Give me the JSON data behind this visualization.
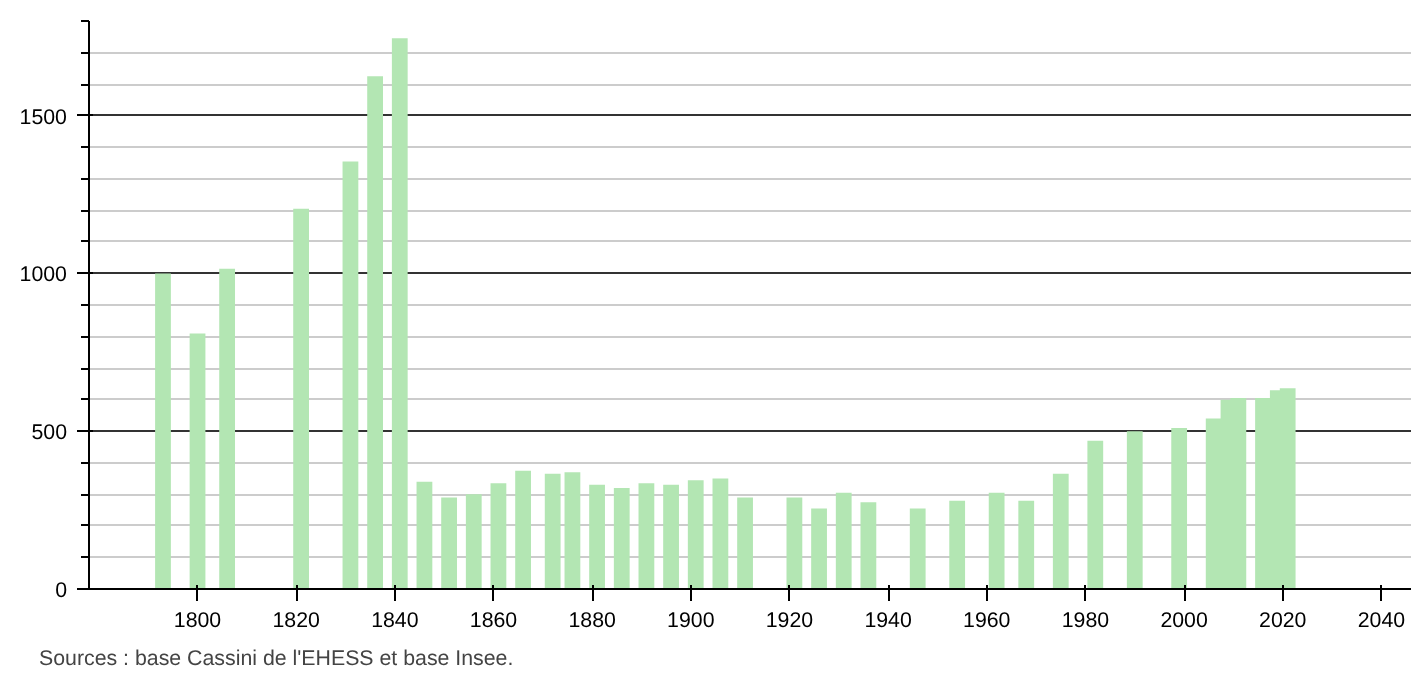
{
  "chart_data": {
    "type": "bar",
    "x": [
      1793,
      1800,
      1806,
      1821,
      1831,
      1836,
      1841,
      1846,
      1851,
      1856,
      1861,
      1866,
      1872,
      1876,
      1881,
      1886,
      1891,
      1896,
      1901,
      1906,
      1911,
      1921,
      1926,
      1931,
      1936,
      1946,
      1954,
      1962,
      1968,
      1975,
      1982,
      1990,
      1999,
      2006,
      2009,
      2011,
      2016,
      2019,
      2021
    ],
    "values": [
      1000,
      810,
      1015,
      1205,
      1355,
      1625,
      1745,
      340,
      290,
      300,
      335,
      375,
      365,
      370,
      330,
      320,
      335,
      330,
      345,
      350,
      290,
      290,
      255,
      305,
      275,
      255,
      280,
      305,
      280,
      365,
      470,
      500,
      510,
      540,
      600,
      605,
      605,
      630,
      636
    ],
    "color": "#b3e6b3",
    "xlim": [
      1778,
      2046
    ],
    "ylim": [
      0,
      1800
    ],
    "xticks": [
      1800,
      1820,
      1840,
      1860,
      1880,
      1900,
      1920,
      1940,
      1960,
      1980,
      2000,
      2020,
      2040
    ],
    "yticks": [
      0,
      500,
      1000,
      1500
    ],
    "grid": "y",
    "annotations": [
      "Sources : base Cassini de l'EHESS et base Insee."
    ]
  }
}
